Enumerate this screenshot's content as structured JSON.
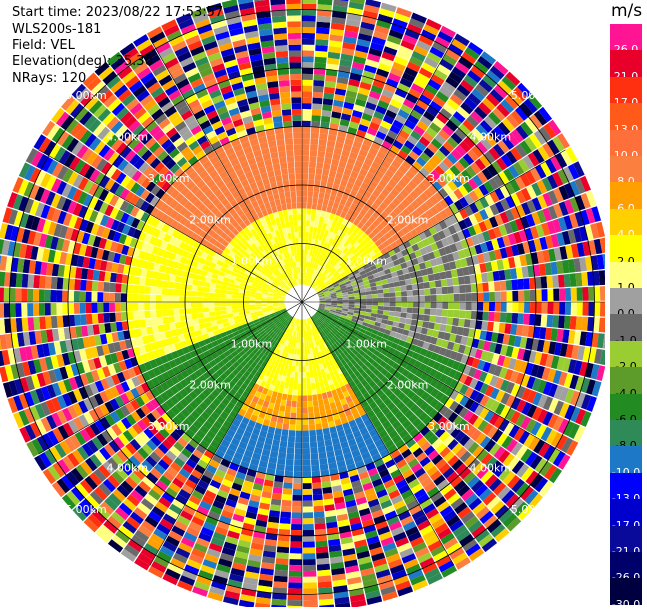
{
  "header": {
    "start_time": "Start time: 2023/08/22 17:53:57",
    "instrument": "WLS200s-181",
    "field": "Field: VEL",
    "elevation": "Elevation(deg): 35.30",
    "nrays": "NRays: 120"
  },
  "colorbar": {
    "unit": "m/s",
    "entries": [
      {
        "label": "26.0",
        "color": "#ff1493"
      },
      {
        "label": "21.0",
        "color": "#e8002a"
      },
      {
        "label": "17.0",
        "color": "#ff3010"
      },
      {
        "label": "13.0",
        "color": "#ff5a1a"
      },
      {
        "label": "10.0",
        "color": "#ff6f3a"
      },
      {
        "label": "8.0",
        "color": "#fb8040"
      },
      {
        "label": "6.0",
        "color": "#ffa000"
      },
      {
        "label": "4.0",
        "color": "#ffcf00"
      },
      {
        "label": "2.0",
        "color": "#ffff00"
      },
      {
        "label": "1.0",
        "color": "#ffff80"
      },
      {
        "label": "0.0",
        "color": "#a0a0a0"
      },
      {
        "label": "-1.0",
        "color": "#6a6a6a"
      },
      {
        "label": "-2.0",
        "color": "#9acd32"
      },
      {
        "label": "-4.0",
        "color": "#5d9b2a"
      },
      {
        "label": "-6.0",
        "color": "#228b22"
      },
      {
        "label": "-8.0",
        "color": "#2e8b57"
      },
      {
        "label": "-10.0",
        "color": "#1e78c8"
      },
      {
        "label": "-13.0",
        "color": "#0000ff"
      },
      {
        "label": "-17.0",
        "color": "#0000cd"
      },
      {
        "label": "-21.0",
        "color": "#0a0a9a"
      },
      {
        "label": "-26.0",
        "color": "#00006b"
      },
      {
        "label": "-30.0",
        "color": "#000040"
      }
    ]
  },
  "chart_data": {
    "type": "heatmap",
    "projection": "polar-ppi",
    "field": "VEL",
    "unit": "m/s",
    "elevation_deg": 35.3,
    "nrays": 120,
    "range_rings_km": [
      1,
      2,
      3,
      4,
      5
    ],
    "max_range_km": 5.2,
    "ring_labels": [
      "1.00km",
      "2.00km",
      "3.00km",
      "4.00km",
      "5.00km"
    ],
    "approx_sector_velocities": [
      {
        "azimuth_deg": [
          300,
          60
        ],
        "range_km": [
          1.6,
          3.0
        ],
        "velocity_ms": 8.0
      },
      {
        "azimuth_deg": [
          250,
          300
        ],
        "range_km": [
          0.3,
          3.0
        ],
        "velocity_ms": 2.0
      },
      {
        "azimuth_deg": [
          60,
          110
        ],
        "range_km": [
          0.3,
          3.0
        ],
        "velocity_ms": -1.0
      },
      {
        "azimuth_deg": [
          110,
          150
        ],
        "range_km": [
          0.3,
          3.0
        ],
        "velocity_ms": -6.0
      },
      {
        "azimuth_deg": [
          150,
          210
        ],
        "range_km": [
          2.2,
          3.0
        ],
        "velocity_ms": -10.0
      },
      {
        "azimuth_deg": [
          210,
          250
        ],
        "range_km": [
          0.3,
          3.0
        ],
        "velocity_ms": -6.0
      }
    ],
    "noise_beyond_km": 3.0
  }
}
